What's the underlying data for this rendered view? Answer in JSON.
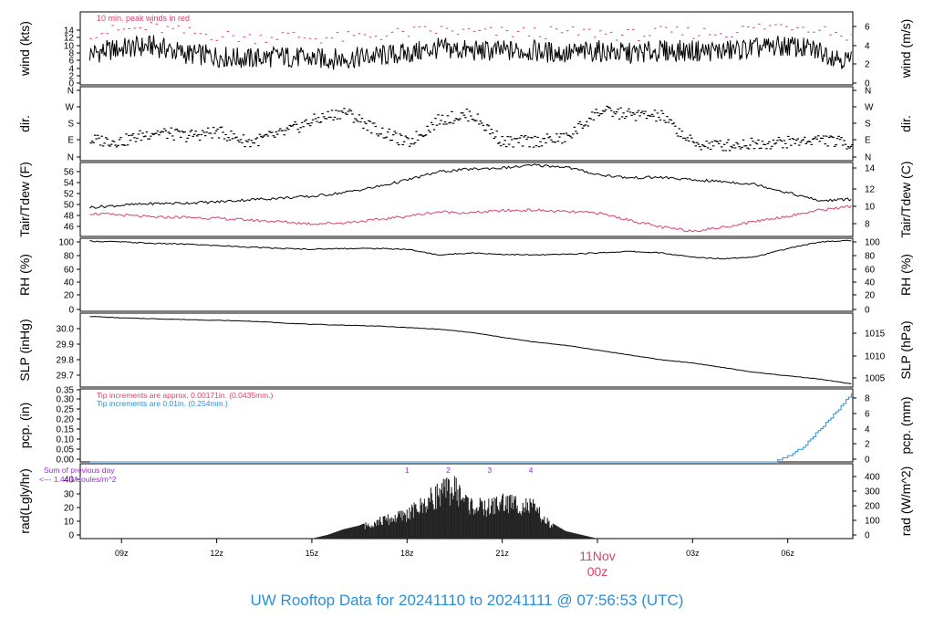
{
  "footer": "UW Rooftop Data for 20241110  to  20241111 @ 07:56:53  (UTC)",
  "colors": {
    "red": "#d9426b",
    "blue": "#2b8fd6",
    "purple": "#9b2fd6",
    "black": "#000000",
    "grid": "#ffffff"
  },
  "chart_data": [
    {
      "type": "line",
      "name": "wind",
      "ylabel_left": "wind (kts)",
      "ylabel_right": "wind (m/s)",
      "annotation": "10 min. peak winds in red",
      "ylim": [
        0,
        14
      ],
      "yticks_left": [
        "0",
        "2",
        "4",
        "6",
        "8",
        "10",
        "12",
        "14"
      ],
      "yticks_right": [
        "0",
        "2",
        "4",
        "6"
      ],
      "x": [
        8.0,
        9.0,
        10.0,
        11.0,
        12.0,
        13.0,
        14.0,
        15.0,
        16.0,
        17.0,
        18.0,
        19.0,
        20.0,
        21.0,
        22.0,
        23.0,
        24.0,
        25.0,
        26.0,
        27.0,
        28.0,
        29.0,
        30.0,
        31.0,
        32.0
      ],
      "series": [
        {
          "values": [
            6,
            7,
            7.5,
            6,
            5.5,
            5,
            5.5,
            5,
            5,
            5.5,
            6,
            7,
            6.5,
            6.5,
            6.5,
            6,
            6.5,
            6,
            6.5,
            6.5,
            6.5,
            7,
            7.5,
            6.5,
            4.5
          ]
        },
        {
          "values": [
            10,
            10.5,
            11,
            10,
            9.5,
            9,
            9.5,
            9,
            9,
            9.5,
            10,
            10.5,
            10,
            10,
            10,
            10,
            10,
            9.5,
            10,
            10,
            10,
            11,
            11.5,
            11,
            9
          ]
        }
      ]
    },
    {
      "type": "scatter",
      "name": "dir.",
      "ylabel_left": "dir.",
      "ylabel_right": "dir.",
      "ylim": [
        0,
        360
      ],
      "yticks_left": [
        "N",
        "E",
        "S",
        "W",
        "N"
      ],
      "yticks_right": [
        "N",
        "E",
        "S",
        "W",
        "N"
      ],
      "x": [
        8.0,
        9.0,
        10.0,
        11.0,
        12.0,
        13.0,
        14.0,
        15.0,
        16.0,
        17.0,
        18.0,
        19.0,
        20.0,
        21.0,
        22.0,
        23.0,
        24.0,
        25.0,
        26.0,
        27.0,
        28.0,
        29.0,
        30.0,
        31.0,
        32.0
      ],
      "values": [
        100,
        95,
        140,
        120,
        140,
        90,
        130,
        195,
        240,
        150,
        85,
        200,
        225,
        90,
        95,
        110,
        240,
        225,
        215,
        80,
        75,
        85,
        90,
        105,
        80
      ]
    },
    {
      "type": "line",
      "name": "Tair/Tdew",
      "ylabel_left": "Tair/Tdew (F)",
      "ylabel_right": "Tair/Tdew (C)",
      "ylim": [
        44.5,
        58
      ],
      "yticks_left": [
        "46",
        "48",
        "50",
        "52",
        "54",
        "56"
      ],
      "yticks_right": [
        "8",
        "10",
        "12",
        "14"
      ],
      "x": [
        8.0,
        9.0,
        10.0,
        11.0,
        12.0,
        13.0,
        14.0,
        15.0,
        16.0,
        17.0,
        18.0,
        19.0,
        20.0,
        21.0,
        22.0,
        23.0,
        24.0,
        25.0,
        26.0,
        27.0,
        28.0,
        29.0,
        30.0,
        31.0,
        32.0
      ],
      "series": [
        {
          "name": "Tair",
          "values": [
            49.8,
            50.2,
            50.5,
            50.6,
            50.8,
            51.2,
            51.5,
            51.8,
            52.5,
            53.5,
            54.8,
            56.3,
            56.8,
            57.0,
            57.5,
            57.2,
            55.8,
            55.2,
            55.3,
            54.8,
            54.5,
            54.0,
            52.5,
            51.0,
            51.3
          ]
        },
        {
          "name": "Tdew",
          "values": [
            48.7,
            48.4,
            48.0,
            48.0,
            47.8,
            47.5,
            47.2,
            46.8,
            47.0,
            47.5,
            48.2,
            49.0,
            48.8,
            49.2,
            49.3,
            49.0,
            48.8,
            47.5,
            46.2,
            45.5,
            46.2,
            47.3,
            48.2,
            49.3,
            50.0
          ]
        }
      ]
    },
    {
      "type": "line",
      "name": "RH",
      "ylabel_left": "RH (%)",
      "ylabel_right": "RH (%)",
      "ylim": [
        0,
        100
      ],
      "yticks_left": [
        "0",
        "20",
        "40",
        "60",
        "80",
        "100"
      ],
      "yticks_right": [
        "0",
        "20",
        "40",
        "60",
        "80",
        "100"
      ],
      "x": [
        8.0,
        9.0,
        10.0,
        11.0,
        12.0,
        13.0,
        14.0,
        15.0,
        16.0,
        17.0,
        18.0,
        19.0,
        20.0,
        21.0,
        22.0,
        23.0,
        24.0,
        25.0,
        26.0,
        27.0,
        28.0,
        29.0,
        30.0,
        31.0,
        32.0
      ],
      "values": [
        96,
        95,
        93,
        92,
        90,
        88,
        86,
        85,
        86,
        86,
        85,
        77,
        80,
        78,
        77,
        78,
        80,
        82,
        80,
        74,
        72,
        75,
        86,
        95,
        97
      ]
    },
    {
      "type": "line",
      "name": "SLP",
      "ylabel_left": "SLP (inHg)",
      "ylabel_right": "SLP (hPa)",
      "ylim": [
        29.64,
        30.1
      ],
      "yticks_left": [
        "29.7",
        "29.8",
        "29.9",
        "30.0"
      ],
      "yticks_right": [
        "1005",
        "1010",
        "1015"
      ],
      "x": [
        8.0,
        9.0,
        10.0,
        11.0,
        12.0,
        13.0,
        14.0,
        15.0,
        16.0,
        17.0,
        18.0,
        19.0,
        20.0,
        21.0,
        22.0,
        23.0,
        24.0,
        25.0,
        26.0,
        27.0,
        28.0,
        29.0,
        30.0,
        31.0,
        32.0
      ],
      "values": [
        30.08,
        30.07,
        30.065,
        30.06,
        30.055,
        30.05,
        30.04,
        30.03,
        30.025,
        30.02,
        30.01,
        30.0,
        29.98,
        29.95,
        29.92,
        29.9,
        29.87,
        29.84,
        29.81,
        29.79,
        29.76,
        29.73,
        29.71,
        29.69,
        29.66
      ]
    },
    {
      "type": "line",
      "name": "pcp",
      "ylabel_left": "pcp. (in)",
      "ylabel_right": "pcp. (mm)",
      "annotation_red": "Tip increments are approx. 0.00171in. (0.0435mm.)",
      "annotation_blue": "Tip increments are 0.01in. (0.254mm.)",
      "ylim": [
        0,
        0.35
      ],
      "yticks_left": [
        "0.00",
        "0.05",
        "0.10",
        "0.15",
        "0.20",
        "0.25",
        "0.30",
        "0.35"
      ],
      "yticks_right": [
        "0",
        "2",
        "4",
        "6",
        "8"
      ],
      "x": [
        8.0,
        29.5,
        30.0,
        30.5,
        31.0,
        31.5,
        32.0
      ],
      "values": [
        0,
        0,
        0.03,
        0.08,
        0.16,
        0.24,
        0.33
      ]
    },
    {
      "type": "bar",
      "name": "rad",
      "ylabel_left": "rad(Lgly/hr)",
      "ylabel_right": "rad (W/m^2)",
      "annotation_lines": [
        "Sum of previous day",
        "<--- 1.44 MJoules/m^2"
      ],
      "markers": [
        "1",
        "2",
        "3",
        "4"
      ],
      "ylim": [
        0,
        40
      ],
      "yticks_left": [
        "0",
        "10",
        "20",
        "30",
        "40"
      ],
      "yticks_right": [
        "0",
        "100",
        "200",
        "300",
        "400"
      ],
      "x": [
        15.0,
        15.5,
        16.0,
        16.5,
        17.0,
        17.5,
        18.0,
        18.5,
        19.0,
        19.5,
        20.0,
        20.5,
        21.0,
        21.5,
        22.0,
        22.5,
        23.0,
        23.5,
        24.0
      ],
      "values": [
        0,
        2,
        5,
        7,
        11,
        13,
        16,
        22,
        30,
        33,
        22,
        20,
        24,
        23,
        20,
        9,
        4,
        2,
        0
      ]
    }
  ],
  "x_axis": {
    "ticks": [
      "09z",
      "12z",
      "15z",
      "18z",
      "21z",
      "03z",
      "06z"
    ],
    "day_label": [
      "11Nov",
      "00z"
    ]
  }
}
